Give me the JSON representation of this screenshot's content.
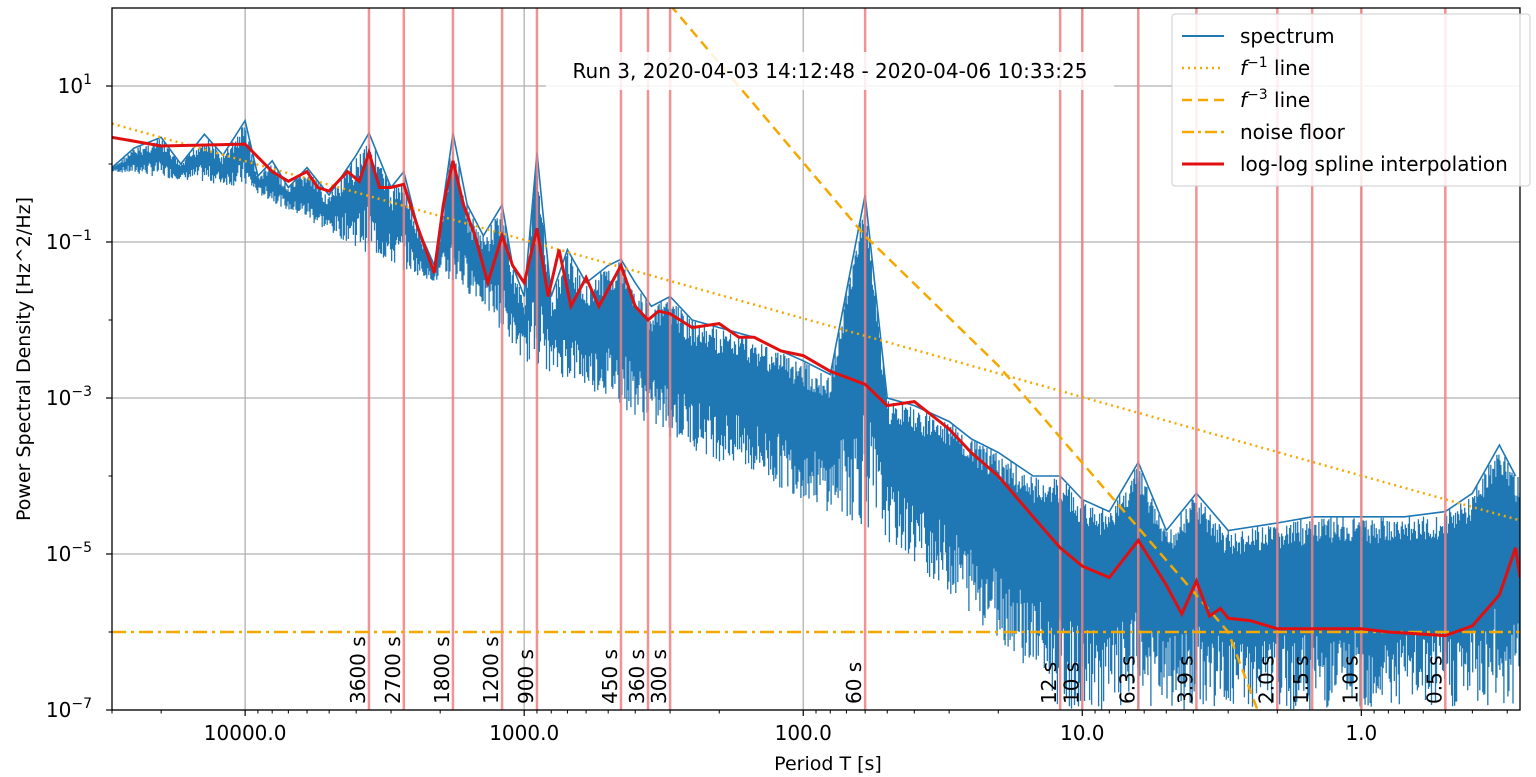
{
  "chart_data": {
    "type": "line",
    "title": "Run 3, 2020-04-03 14:12:48 - 2020-04-06 10:33:25",
    "xlabel": "Period T [s]",
    "ylabel": "Power Spectral Density [Hz^2/Hz]",
    "x_scale": "log",
    "x_reversed": true,
    "y_scale": "log",
    "xlim": [
      30000,
      0.27
    ],
    "ylim": [
      1e-07,
      100
    ],
    "grid": true,
    "x_ticks": [
      {
        "value": 10000,
        "label": "10000.0"
      },
      {
        "value": 1000,
        "label": "1000.0"
      },
      {
        "value": 100,
        "label": "100.0"
      },
      {
        "value": 10,
        "label": "10.0"
      },
      {
        "value": 1,
        "label": "1.0"
      }
    ],
    "y_ticks": [
      {
        "value": 10,
        "base": "10",
        "exp": "1"
      },
      {
        "value": 0.1,
        "base": "10",
        "exp": "−1"
      },
      {
        "value": 0.001,
        "base": "10",
        "exp": "−3"
      },
      {
        "value": 1e-05,
        "base": "10",
        "exp": "−5"
      },
      {
        "value": 1e-07,
        "base": "10",
        "exp": "−7"
      }
    ],
    "legend_position": "top-right",
    "colors": {
      "spectrum": "#1f77b4",
      "reference": "#f5a800",
      "spline": "#e01010",
      "marker_lines": "#f08080",
      "grid": "#b0b0b0"
    },
    "series": [
      {
        "name": "spectrum",
        "style": "solid-blue",
        "points": [
          [
            30000,
            0.9
          ],
          [
            25000,
            1.6
          ],
          [
            20000,
            2.2
          ],
          [
            17000,
            1.0
          ],
          [
            14000,
            2.4
          ],
          [
            12000,
            1.3
          ],
          [
            10000,
            3.6
          ],
          [
            9000,
            0.7
          ],
          [
            8000,
            1.1
          ],
          [
            7000,
            0.5
          ],
          [
            6000,
            0.9
          ],
          [
            5000,
            0.4
          ],
          [
            4000,
            1.3
          ],
          [
            3600,
            2.5
          ],
          [
            3000,
            0.5
          ],
          [
            2700,
            0.8
          ],
          [
            2400,
            0.15
          ],
          [
            2100,
            0.05
          ],
          [
            1800,
            2.5
          ],
          [
            1600,
            0.3
          ],
          [
            1400,
            0.12
          ],
          [
            1200,
            0.3
          ],
          [
            1100,
            0.05
          ],
          [
            1000,
            0.02
          ],
          [
            900,
            1.4
          ],
          [
            800,
            0.02
          ],
          [
            700,
            0.08
          ],
          [
            600,
            0.03
          ],
          [
            500,
            0.05
          ],
          [
            450,
            0.06
          ],
          [
            400,
            0.03
          ],
          [
            350,
            0.015
          ],
          [
            300,
            0.02
          ],
          [
            250,
            0.01
          ],
          [
            200,
            0.008
          ],
          [
            150,
            0.006
          ],
          [
            120,
            0.004
          ],
          [
            100,
            0.003
          ],
          [
            80,
            0.002
          ],
          [
            60,
            0.4
          ],
          [
            50,
            0.001
          ],
          [
            40,
            0.0008
          ],
          [
            30,
            0.0005
          ],
          [
            25,
            0.0003
          ],
          [
            20,
            0.0002
          ],
          [
            15,
            0.0001
          ],
          [
            12,
            0.0001
          ],
          [
            10,
            5e-05
          ],
          [
            8,
            3.5e-05
          ],
          [
            6.3,
            0.00015
          ],
          [
            5,
            2e-05
          ],
          [
            3.9,
            6e-05
          ],
          [
            3,
            2e-05
          ],
          [
            2,
            2.5e-05
          ],
          [
            1.5,
            3e-05
          ],
          [
            1.0,
            3e-05
          ],
          [
            0.7,
            3e-05
          ],
          [
            0.5,
            3.5e-05
          ],
          [
            0.4,
            6e-05
          ],
          [
            0.32,
            0.00025
          ],
          [
            0.28,
            0.0001
          ]
        ],
        "lower_envelope": [
          [
            30000,
            0.8
          ],
          [
            10000,
            0.5
          ],
          [
            3000,
            0.05
          ],
          [
            1500,
            0.02
          ],
          [
            1000,
            0.003
          ],
          [
            500,
            0.001
          ],
          [
            300,
            0.0003
          ],
          [
            100,
            5e-05
          ],
          [
            50,
            1.5e-05
          ],
          [
            30,
            3e-06
          ],
          [
            20,
            8e-07
          ],
          [
            15,
            3e-07
          ],
          [
            12,
            1e-07
          ],
          [
            0.27,
            1e-07
          ]
        ]
      },
      {
        "name": "f⁻¹ line",
        "style": "dotted-orange",
        "points": [
          [
            30000,
            3.3
          ],
          [
            0.27,
            2.7e-05
          ]
        ]
      },
      {
        "name": "f⁻³ line",
        "style": "dashed-orange",
        "points": [
          [
            300,
            110
          ],
          [
            60,
            0.12
          ],
          [
            20,
            0.0026
          ],
          [
            3,
            1e-06
          ],
          [
            2.3,
            8e-08
          ]
        ]
      },
      {
        "name": "noise floor",
        "style": "dashdot-orange",
        "points": [
          [
            30000,
            1e-06
          ],
          [
            0.27,
            1e-06
          ]
        ]
      },
      {
        "name": "log-log spline interpolation",
        "style": "solid-red",
        "points": [
          [
            30000,
            2.2
          ],
          [
            20000,
            1.7
          ],
          [
            10000,
            1.8
          ],
          [
            8000,
            0.8
          ],
          [
            7000,
            0.6
          ],
          [
            6000,
            0.8
          ],
          [
            5500,
            0.5
          ],
          [
            5000,
            0.45
          ],
          [
            4300,
            0.8
          ],
          [
            3900,
            0.6
          ],
          [
            3600,
            1.4
          ],
          [
            3300,
            0.5
          ],
          [
            3000,
            0.5
          ],
          [
            2700,
            0.55
          ],
          [
            2400,
            0.15
          ],
          [
            2100,
            0.04
          ],
          [
            1950,
            0.3
          ],
          [
            1800,
            1.1
          ],
          [
            1650,
            0.3
          ],
          [
            1500,
            0.12
          ],
          [
            1350,
            0.03
          ],
          [
            1200,
            0.12
          ],
          [
            1100,
            0.05
          ],
          [
            1000,
            0.03
          ],
          [
            900,
            0.15
          ],
          [
            820,
            0.02
          ],
          [
            750,
            0.08
          ],
          [
            680,
            0.015
          ],
          [
            600,
            0.035
          ],
          [
            540,
            0.015
          ],
          [
            450,
            0.05
          ],
          [
            400,
            0.015
          ],
          [
            360,
            0.01
          ],
          [
            330,
            0.013
          ],
          [
            300,
            0.012
          ],
          [
            250,
            0.008
          ],
          [
            200,
            0.009
          ],
          [
            170,
            0.006
          ],
          [
            150,
            0.006
          ],
          [
            120,
            0.004
          ],
          [
            100,
            0.0035
          ],
          [
            80,
            0.0022
          ],
          [
            60,
            0.0015
          ],
          [
            50,
            0.0008
          ],
          [
            40,
            0.0009
          ],
          [
            30,
            0.0004
          ],
          [
            25,
            0.0002
          ],
          [
            20,
            0.0001
          ],
          [
            15,
            3e-05
          ],
          [
            12,
            1.2e-05
          ],
          [
            10,
            7e-06
          ],
          [
            8,
            5e-06
          ],
          [
            6.3,
            1.5e-05
          ],
          [
            5,
            4e-06
          ],
          [
            4.4,
            1.7e-06
          ],
          [
            3.9,
            4.5e-06
          ],
          [
            3.5,
            1.6e-06
          ],
          [
            3.2,
            2e-06
          ],
          [
            3,
            1.5e-06
          ],
          [
            2.5,
            1.4e-06
          ],
          [
            2,
            1.1e-06
          ],
          [
            1.5,
            1.1e-06
          ],
          [
            1.0,
            1.1e-06
          ],
          [
            0.8,
            1e-06
          ],
          [
            0.5,
            9e-07
          ],
          [
            0.4,
            1.2e-06
          ],
          [
            0.32,
            3e-06
          ],
          [
            0.28,
            1.2e-05
          ],
          [
            0.27,
            5e-06
          ]
        ]
      }
    ],
    "vertical_markers": [
      {
        "period": 3600,
        "label": "3600 s",
        "labeled": true
      },
      {
        "period": 2700,
        "label": "2700 s",
        "labeled": true
      },
      {
        "period": 1800,
        "label": "1800 s",
        "labeled": true
      },
      {
        "period": 1200,
        "label": "1200 s",
        "labeled": true
      },
      {
        "period": 900,
        "label": "900 s",
        "labeled": true
      },
      {
        "period": 450,
        "label": "450 s",
        "labeled": true
      },
      {
        "period": 360,
        "label": "360 s",
        "labeled": true
      },
      {
        "period": 300,
        "label": "300 s",
        "labeled": true
      },
      {
        "period": 60,
        "label": "60 s",
        "labeled": true
      },
      {
        "period": 12,
        "label": "12 s",
        "labeled": true
      },
      {
        "period": 10,
        "label": "10 s",
        "labeled": true
      },
      {
        "period": 6.3,
        "label": "6.3 s",
        "labeled": true
      },
      {
        "period": 3.9,
        "label": "3.9 s",
        "labeled": true
      },
      {
        "period": 2.0,
        "label": "2.0 s",
        "labeled": true
      },
      {
        "period": 1.5,
        "label": "1.5 s",
        "labeled": true
      },
      {
        "period": 1.0,
        "label": "1.0 s",
        "labeled": true
      },
      {
        "period": 0.5,
        "label": "0.5 s",
        "labeled": true
      }
    ],
    "legend": [
      {
        "label": "spectrum",
        "style": "solid-blue"
      },
      {
        "label": "f⁻¹ line",
        "base": "f",
        "exp": "−1",
        "suffix": " line",
        "style": "dotted-orange"
      },
      {
        "label": "f⁻³ line",
        "base": "f",
        "exp": "−3",
        "suffix": " line",
        "style": "dashed-orange"
      },
      {
        "label": "noise floor",
        "style": "dashdot-orange"
      },
      {
        "label": "log-log spline interpolation",
        "style": "solid-red"
      }
    ]
  }
}
